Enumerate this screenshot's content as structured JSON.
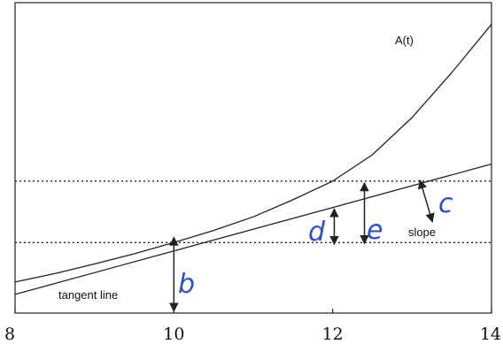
{
  "chart_data": {
    "type": "line",
    "xlim": [
      8,
      14
    ],
    "x_ticks": [
      8,
      10,
      12,
      14
    ],
    "x_tick_labels": [
      "8",
      "10",
      "12",
      "14"
    ],
    "series": [
      {
        "name": "A(t)",
        "x": [
          8,
          8.5,
          9,
          9.5,
          10,
          10.5,
          11,
          11.5,
          12,
          12.5,
          13,
          13.5,
          14
        ],
        "y": [
          1.0,
          1.27,
          1.58,
          1.91,
          2.27,
          2.66,
          3.1,
          3.65,
          4.25,
          5.1,
          6.3,
          7.75,
          9.3
        ]
      },
      {
        "name": "tangent line",
        "x": [
          8,
          14
        ],
        "y": [
          0.6,
          4.8
        ]
      }
    ],
    "horizontal_dotted_lines": [
      2.27,
      4.25
    ],
    "annotations": {
      "curve_label": "A(t)",
      "tangent_label": "tangent line",
      "slope_label": "slope",
      "hand_labels": [
        "b",
        "d",
        "e",
        "c"
      ]
    }
  }
}
